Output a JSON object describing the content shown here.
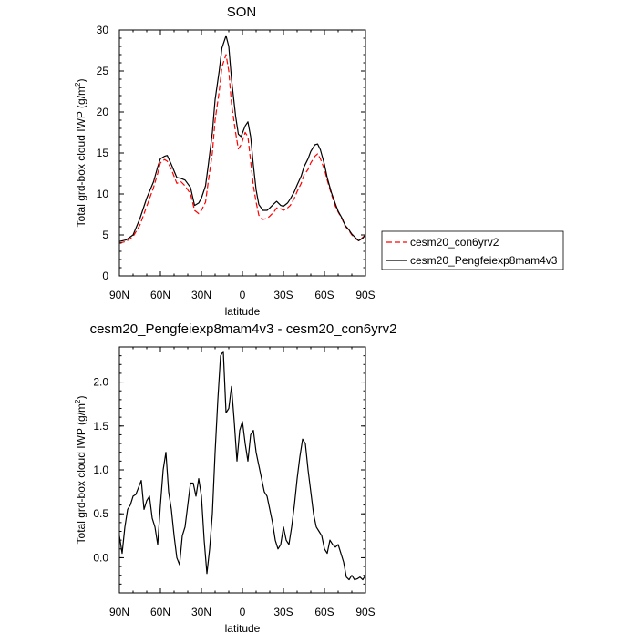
{
  "chart_data": [
    {
      "type": "line",
      "title": "SON",
      "xlabel": "latitude",
      "ylabel": "Total grd-box cloud IWP (g/m",
      "ylabel_sup": "2",
      "ylabel_end": ")",
      "xlim": [
        90,
        -90
      ],
      "ylim": [
        0,
        30
      ],
      "x_ticks": [
        90,
        60,
        30,
        0,
        -30,
        -60,
        -90
      ],
      "x_tick_labels": [
        "90N",
        "60N",
        "30N",
        "0",
        "30S",
        "60S",
        "90S"
      ],
      "y_ticks": [
        0,
        5,
        10,
        15,
        20,
        25,
        30
      ],
      "y_tick_labels": [
        "0",
        "5",
        "10",
        "15",
        "20",
        "25",
        "30"
      ],
      "legend_position": "right",
      "series": [
        {
          "name": "cesm20_con6yrv2",
          "color": "#ff0000",
          "style": "dashed",
          "x": [
            90,
            85,
            80,
            75,
            70,
            65,
            62,
            60,
            57,
            55,
            52,
            48,
            45,
            42,
            38,
            35,
            32,
            30,
            27,
            25,
            22,
            20,
            17,
            15,
            12,
            10,
            8,
            5,
            3,
            1,
            -2,
            -4,
            -6,
            -8,
            -10,
            -12,
            -15,
            -18,
            -20,
            -23,
            -25,
            -28,
            -30,
            -33,
            -35,
            -38,
            -40,
            -43,
            -45,
            -48,
            -50,
            -53,
            -55,
            -57,
            -60,
            -62,
            -65,
            -68,
            -70,
            -73,
            -75,
            -78,
            -80,
            -83,
            -85,
            -88,
            -90
          ],
          "y": [
            4.0,
            4.2,
            4.8,
            6.2,
            8.5,
            10.8,
            12.5,
            13.8,
            14.2,
            14.0,
            13.0,
            11.3,
            11.5,
            11.0,
            10.0,
            8.0,
            7.6,
            8.0,
            9.0,
            11.5,
            15.0,
            19.0,
            22.5,
            25.5,
            27.0,
            25.0,
            21.0,
            17.5,
            15.5,
            16.0,
            17.5,
            17.0,
            14.0,
            11.0,
            9.0,
            7.4,
            6.9,
            7.0,
            7.3,
            7.8,
            8.3,
            8.2,
            8.0,
            8.3,
            8.6,
            9.5,
            10.3,
            11.3,
            12.3,
            13.0,
            13.8,
            14.6,
            14.9,
            14.3,
            13.0,
            11.7,
            10.0,
            8.5,
            7.8,
            6.9,
            6.1,
            5.5,
            5.0,
            4.5,
            4.3,
            4.7,
            5.0
          ]
        },
        {
          "name": "cesm20_Pengfeiexp8mam4v3",
          "color": "#000000",
          "style": "solid",
          "x": [
            90,
            85,
            80,
            75,
            70,
            65,
            62,
            60,
            57,
            55,
            52,
            48,
            45,
            42,
            38,
            35,
            32,
            30,
            27,
            25,
            22,
            20,
            17,
            15,
            12,
            10,
            8,
            5,
            3,
            1,
            -2,
            -4,
            -6,
            -8,
            -10,
            -12,
            -15,
            -18,
            -20,
            -23,
            -25,
            -28,
            -30,
            -33,
            -35,
            -38,
            -40,
            -43,
            -45,
            -48,
            -50,
            -53,
            -55,
            -57,
            -60,
            -62,
            -65,
            -68,
            -70,
            -73,
            -75,
            -78,
            -80,
            -83,
            -85,
            -88,
            -90
          ],
          "y": [
            4.2,
            4.4,
            5.0,
            7.0,
            9.5,
            11.5,
            13.3,
            14.3,
            14.6,
            14.7,
            13.6,
            12.0,
            11.9,
            11.7,
            10.8,
            8.6,
            8.9,
            9.5,
            11.0,
            13.5,
            17.5,
            21.5,
            25.0,
            27.8,
            29.3,
            28.0,
            24.0,
            19.5,
            17.3,
            17.0,
            18.3,
            18.8,
            17.0,
            13.5,
            10.5,
            8.7,
            8.0,
            8.0,
            8.3,
            8.8,
            9.1,
            8.6,
            8.5,
            8.9,
            9.4,
            10.3,
            11.1,
            12.2,
            13.3,
            14.3,
            15.2,
            16.0,
            16.1,
            15.4,
            13.6,
            12.0,
            10.2,
            8.8,
            7.9,
            7.0,
            6.2,
            5.6,
            5.1,
            4.6,
            4.3,
            4.6,
            5.0
          ]
        }
      ]
    },
    {
      "type": "line",
      "title": "cesm20_Pengfeiexp8mam4v3 - cesm20_con6yrv2",
      "xlabel": "latitude",
      "ylabel": "Total grd-box cloud IWP (g/m",
      "ylabel_sup": "2",
      "ylabel_end": ")",
      "xlim": [
        90,
        -90
      ],
      "ylim": [
        -0.4,
        2.4
      ],
      "x_ticks": [
        90,
        60,
        30,
        0,
        -30,
        -60,
        -90
      ],
      "x_tick_labels": [
        "90N",
        "60N",
        "30N",
        "0",
        "30S",
        "60S",
        "90S"
      ],
      "y_ticks": [
        0.0,
        0.5,
        1.0,
        1.5,
        2.0
      ],
      "y_tick_labels": [
        "0.0",
        "0.5",
        "1.0",
        "1.5",
        "2.0"
      ],
      "series": [
        {
          "color": "#000000",
          "style": "solid",
          "x": [
            90,
            88,
            86,
            84,
            82,
            80,
            78,
            76,
            74,
            72,
            70,
            68,
            66,
            64,
            62,
            60,
            58,
            56,
            54,
            52,
            50,
            48,
            46,
            44,
            42,
            40,
            38,
            36,
            34,
            32,
            30,
            28,
            26,
            24,
            22,
            20,
            18,
            16,
            14,
            12,
            10,
            8,
            6,
            4,
            2,
            0,
            -2,
            -4,
            -6,
            -8,
            -10,
            -12,
            -14,
            -16,
            -18,
            -20,
            -22,
            -24,
            -26,
            -28,
            -30,
            -32,
            -34,
            -36,
            -38,
            -40,
            -42,
            -44,
            -46,
            -48,
            -50,
            -52,
            -54,
            -56,
            -58,
            -60,
            -62,
            -64,
            -66,
            -68,
            -70,
            -72,
            -74,
            -76,
            -78,
            -80,
            -82,
            -84,
            -86,
            -88,
            -90
          ],
          "y": [
            0.25,
            0.05,
            0.35,
            0.55,
            0.6,
            0.7,
            0.72,
            0.8,
            0.88,
            0.55,
            0.65,
            0.7,
            0.45,
            0.35,
            0.15,
            0.6,
            1.0,
            1.2,
            0.75,
            0.55,
            0.25,
            0.0,
            -0.08,
            0.25,
            0.35,
            0.6,
            0.85,
            0.85,
            0.7,
            0.9,
            0.7,
            0.2,
            -0.18,
            0.1,
            0.5,
            1.2,
            1.8,
            2.3,
            2.35,
            1.65,
            1.7,
            1.95,
            1.55,
            1.1,
            1.45,
            1.55,
            1.3,
            1.1,
            1.4,
            1.45,
            1.2,
            1.05,
            0.9,
            0.75,
            0.7,
            0.55,
            0.4,
            0.2,
            0.1,
            0.15,
            0.35,
            0.2,
            0.15,
            0.35,
            0.6,
            0.9,
            1.15,
            1.35,
            1.3,
            1.0,
            0.75,
            0.5,
            0.35,
            0.3,
            0.25,
            0.1,
            0.05,
            0.2,
            0.15,
            0.12,
            0.15,
            0.05,
            -0.05,
            -0.22,
            -0.25,
            -0.2,
            -0.25,
            -0.24,
            -0.22,
            -0.25,
            -0.2
          ]
        }
      ]
    }
  ]
}
